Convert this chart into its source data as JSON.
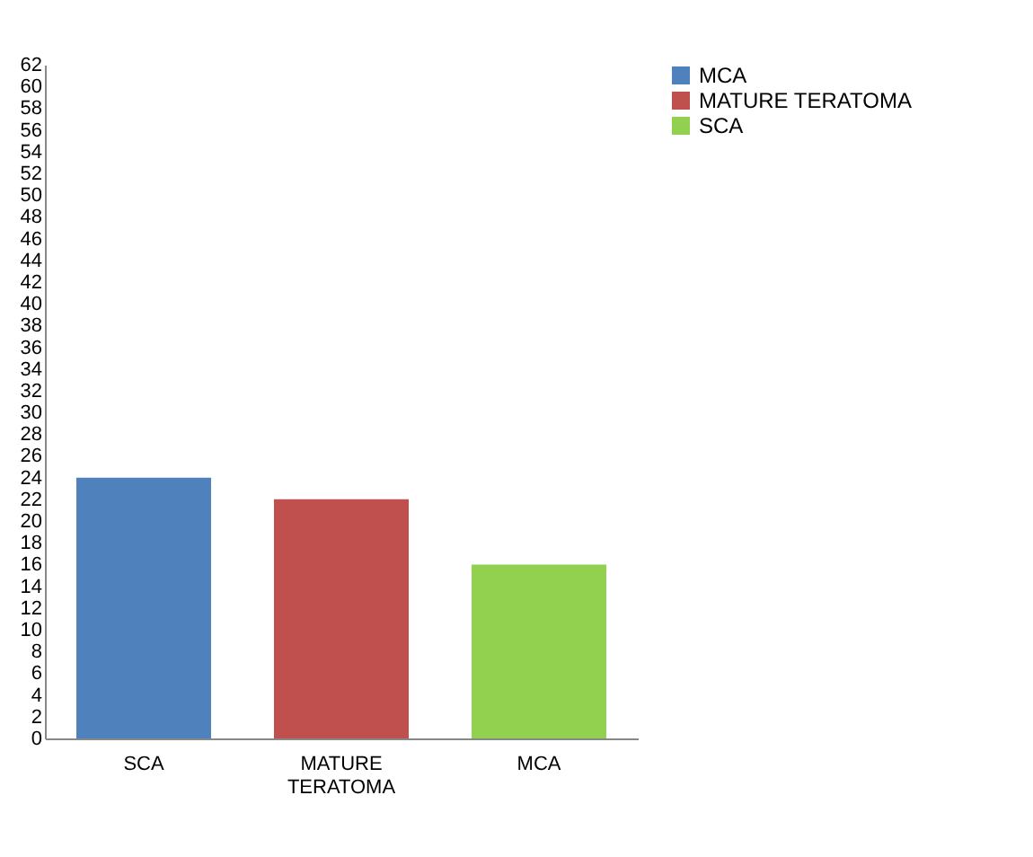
{
  "chart_data": {
    "type": "bar",
    "categories": [
      "SCA",
      "MATURE TERATOMA",
      "MCA"
    ],
    "series": [
      {
        "name": "MCA",
        "color": "#4f81bd",
        "values": [
          24,
          null,
          null
        ]
      },
      {
        "name": "MATURE TERATOMA",
        "color": "#c0504d",
        "values": [
          null,
          22,
          null
        ]
      },
      {
        "name": "SCA",
        "color": "#92d050",
        "values": [
          null,
          null,
          16
        ]
      }
    ],
    "ylim": [
      0,
      62
    ],
    "yticks": [
      0,
      2,
      4,
      6,
      8,
      10,
      12,
      14,
      16,
      18,
      20,
      22,
      24,
      26,
      28,
      30,
      32,
      34,
      36,
      38,
      40,
      42,
      44,
      46,
      48,
      50,
      52,
      54,
      56,
      58,
      60,
      62
    ],
    "grid": false,
    "legend": "right"
  }
}
